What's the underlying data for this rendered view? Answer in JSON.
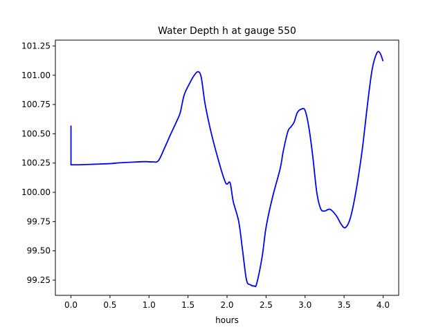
{
  "chart_data": {
    "type": "line",
    "title": "Water Depth h at gauge 550",
    "xlabel": "hours",
    "ylabel": "",
    "xlim": [
      -0.2,
      4.2
    ],
    "ylim": [
      99.12,
      101.3
    ],
    "xticks": [
      0.0,
      0.5,
      1.0,
      1.5,
      2.0,
      2.5,
      3.0,
      3.5,
      4.0
    ],
    "xtick_labels": [
      "0.0",
      "0.5",
      "1.0",
      "1.5",
      "2.0",
      "2.5",
      "3.0",
      "3.5",
      "4.0"
    ],
    "yticks": [
      99.25,
      99.5,
      99.75,
      100.0,
      100.25,
      100.5,
      100.75,
      101.0,
      101.25
    ],
    "ytick_labels": [
      "99.25",
      "99.50",
      "99.75",
      "100.00",
      "100.25",
      "100.50",
      "100.75",
      "101.00",
      "101.25"
    ],
    "grid": false,
    "legend": "none",
    "series": [
      {
        "color": "#0000ff",
        "points": [
          [
            0.0,
            100.57
          ],
          [
            0.0,
            100.235
          ],
          [
            0.1,
            100.235
          ],
          [
            0.3,
            100.24
          ],
          [
            0.5,
            100.245
          ],
          [
            0.62,
            100.252
          ],
          [
            0.8,
            100.258
          ],
          [
            0.95,
            100.262
          ],
          [
            1.05,
            100.26
          ],
          [
            1.12,
            100.27
          ],
          [
            1.2,
            100.38
          ],
          [
            1.28,
            100.5
          ],
          [
            1.35,
            100.6
          ],
          [
            1.4,
            100.68
          ],
          [
            1.45,
            100.83
          ],
          [
            1.52,
            100.93
          ],
          [
            1.58,
            101.0
          ],
          [
            1.63,
            101.03
          ],
          [
            1.67,
            100.98
          ],
          [
            1.72,
            100.75
          ],
          [
            1.8,
            100.5
          ],
          [
            1.9,
            100.25
          ],
          [
            1.97,
            100.1
          ],
          [
            2.0,
            100.07
          ],
          [
            2.04,
            100.08
          ],
          [
            2.08,
            99.92
          ],
          [
            2.15,
            99.75
          ],
          [
            2.2,
            99.5
          ],
          [
            2.25,
            99.25
          ],
          [
            2.3,
            99.21
          ],
          [
            2.35,
            99.2
          ],
          [
            2.38,
            99.22
          ],
          [
            2.45,
            99.45
          ],
          [
            2.5,
            99.7
          ],
          [
            2.58,
            99.95
          ],
          [
            2.68,
            100.2
          ],
          [
            2.72,
            100.35
          ],
          [
            2.78,
            100.52
          ],
          [
            2.82,
            100.56
          ],
          [
            2.86,
            100.6
          ],
          [
            2.9,
            100.68
          ],
          [
            2.95,
            100.71
          ],
          [
            3.0,
            100.7
          ],
          [
            3.05,
            100.55
          ],
          [
            3.1,
            100.3
          ],
          [
            3.15,
            100.0
          ],
          [
            3.2,
            99.86
          ],
          [
            3.25,
            99.84
          ],
          [
            3.32,
            99.855
          ],
          [
            3.4,
            99.8
          ],
          [
            3.47,
            99.72
          ],
          [
            3.52,
            99.7
          ],
          [
            3.58,
            99.78
          ],
          [
            3.65,
            100.0
          ],
          [
            3.73,
            100.35
          ],
          [
            3.8,
            100.75
          ],
          [
            3.86,
            101.05
          ],
          [
            3.92,
            101.19
          ],
          [
            3.96,
            101.19
          ],
          [
            4.0,
            101.12
          ]
        ]
      }
    ]
  }
}
